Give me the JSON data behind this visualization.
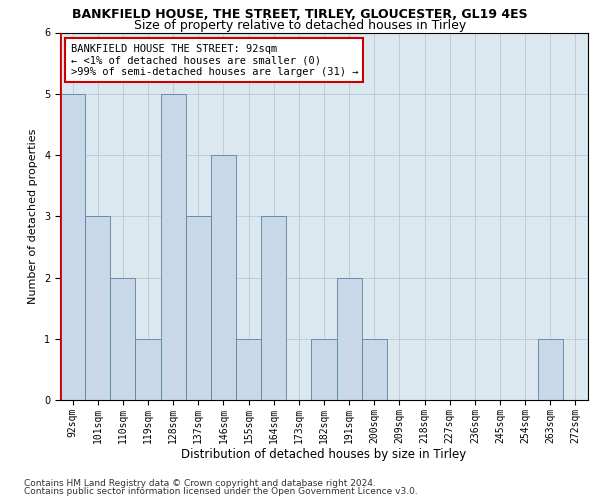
{
  "title": "BANKFIELD HOUSE, THE STREET, TIRLEY, GLOUCESTER, GL19 4ES",
  "subtitle": "Size of property relative to detached houses in Tirley",
  "xlabel": "Distribution of detached houses by size in Tirley",
  "ylabel": "Number of detached properties",
  "categories": [
    "92sqm",
    "101sqm",
    "110sqm",
    "119sqm",
    "128sqm",
    "137sqm",
    "146sqm",
    "155sqm",
    "164sqm",
    "173sqm",
    "182sqm",
    "191sqm",
    "200sqm",
    "209sqm",
    "218sqm",
    "227sqm",
    "236sqm",
    "245sqm",
    "254sqm",
    "263sqm",
    "272sqm"
  ],
  "values": [
    5,
    3,
    2,
    1,
    5,
    3,
    4,
    1,
    3,
    0,
    1,
    2,
    1,
    0,
    0,
    0,
    0,
    0,
    0,
    1,
    0
  ],
  "bar_color": "#c8d8e8",
  "bar_edge_color": "#5a82a0",
  "highlight_index": 0,
  "annotation_line1": "BANKFIELD HOUSE THE STREET: 92sqm",
  "annotation_line2": "← <1% of detached houses are smaller (0)",
  "annotation_line3": ">99% of semi-detached houses are larger (31) →",
  "annotation_box_color": "#ffffff",
  "annotation_box_edge_color": "#cc0000",
  "ylim": [
    0,
    6
  ],
  "yticks": [
    0,
    1,
    2,
    3,
    4,
    5,
    6
  ],
  "grid_color": "#b8c8d8",
  "background_color": "#dce8f0",
  "fig_background_color": "#ffffff",
  "footer_line1": "Contains HM Land Registry data © Crown copyright and database right 2024.",
  "footer_line2": "Contains public sector information licensed under the Open Government Licence v3.0.",
  "title_fontsize": 9,
  "subtitle_fontsize": 9,
  "xlabel_fontsize": 8.5,
  "ylabel_fontsize": 8,
  "tick_fontsize": 7,
  "annotation_fontsize": 7.5,
  "footer_fontsize": 6.5
}
